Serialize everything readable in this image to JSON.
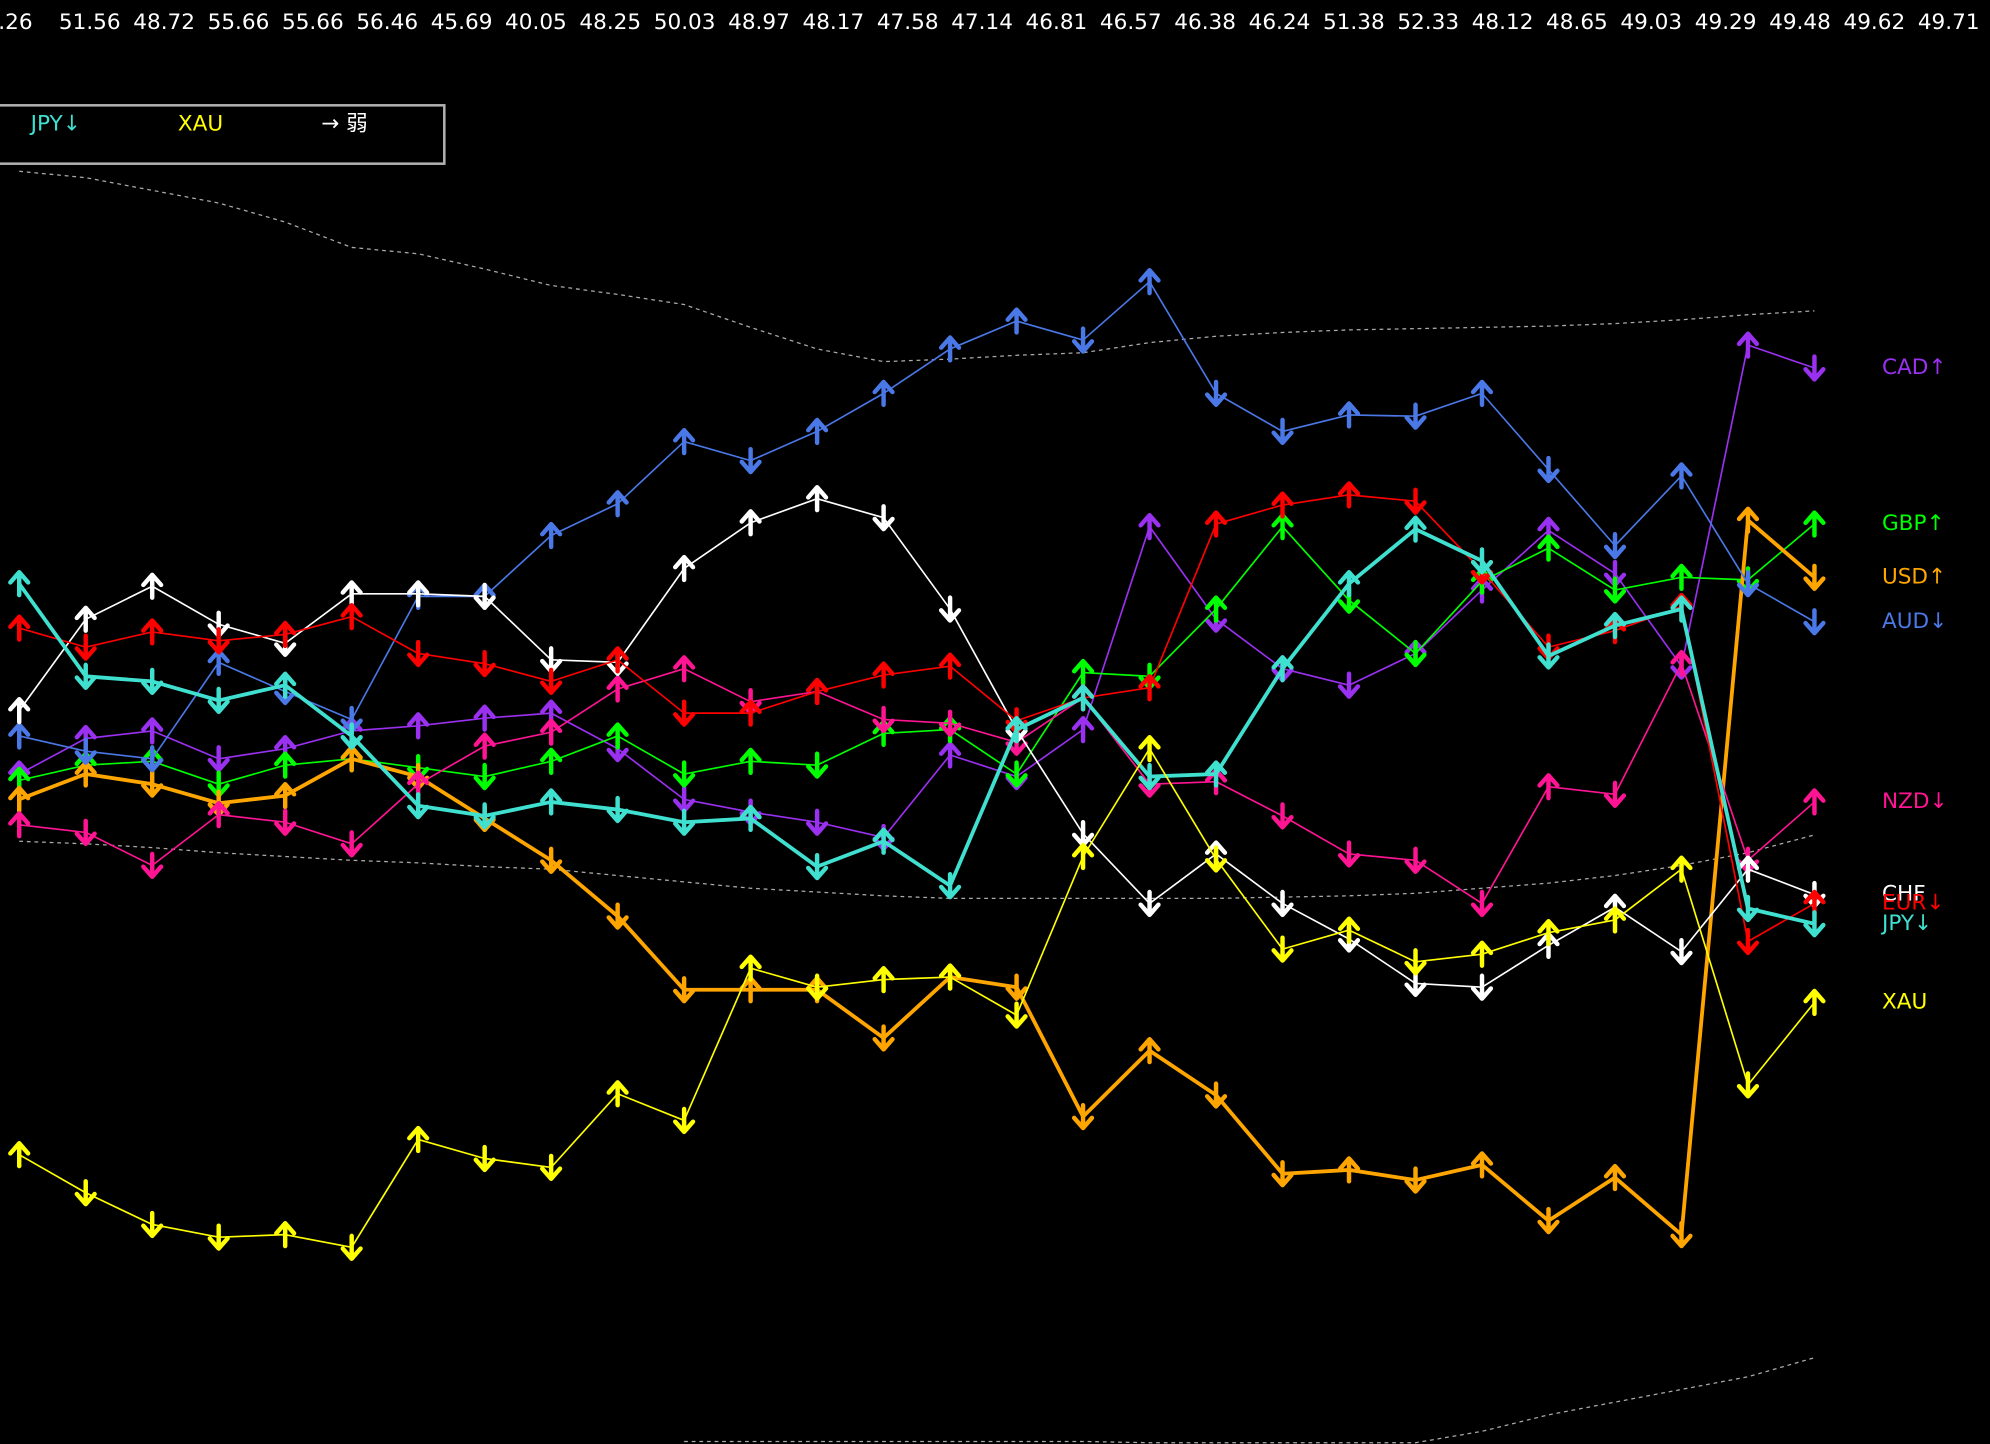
{
  "chart_data": {
    "type": "line",
    "top_values": [
      ".26",
      "51.56",
      "48.72",
      "55.66",
      "55.66",
      "56.46",
      "45.69",
      "40.05",
      "48.25",
      "50.03",
      "48.97",
      "48.17",
      "47.58",
      "47.14",
      "46.81",
      "46.57",
      "46.38",
      "46.24",
      "51.38",
      "52.33",
      "48.12",
      "48.65",
      "49.03",
      "49.29",
      "49.48",
      "49.62",
      "49.71"
    ],
    "legend_box": [
      {
        "text": "JPY↓",
        "color": "#40e0d0"
      },
      {
        "text": "XAU",
        "color": "#ffff00"
      },
      {
        "text": "→ 弱",
        "color": "#ffffff"
      }
    ],
    "ylim": [
      0,
      100
    ],
    "series": [
      {
        "name": "CAD↑",
        "color": "#9a30f0",
        "width": 1.3,
        "values": [
          52.8,
          55.6,
          56.2,
          54.0,
          54.8,
          56.2,
          56.6,
          57.2,
          57.6,
          54.8,
          50.8,
          49.8,
          49.0,
          47.8,
          54.3,
          52.6,
          56.3,
          72.3,
          65.0,
          61.1,
          59.8,
          62.3,
          67.3,
          72.0,
          68.6,
          61.3,
          86.6,
          84.8
        ]
      },
      {
        "name": "GBP↑",
        "color": "#00ff00",
        "width": 1.3,
        "values": [
          52.3,
          53.5,
          53.8,
          52.0,
          53.5,
          54.0,
          53.3,
          52.6,
          53.8,
          55.8,
          52.8,
          53.8,
          53.5,
          56.0,
          56.3,
          52.8,
          60.8,
          60.5,
          65.8,
          72.3,
          66.5,
          62.3,
          68.0,
          70.6,
          67.3,
          68.3,
          68.1,
          72.5
        ]
      },
      {
        "name": "USD↑",
        "color": "#ffa500",
        "width": 3,
        "values": [
          50.8,
          52.8,
          52.0,
          50.5,
          51.1,
          54.0,
          52.6,
          49.3,
          46.0,
          41.6,
          35.8,
          35.8,
          35.8,
          32.0,
          36.8,
          36.0,
          25.8,
          31.0,
          27.5,
          21.3,
          21.6,
          20.8,
          22.0,
          17.6,
          21.0,
          16.5,
          72.8,
          68.3
        ]
      },
      {
        "name": "AUD↓",
        "color": "#4a78e6",
        "width": 1.3,
        "values": [
          55.8,
          54.6,
          54.0,
          61.6,
          59.3,
          57.1,
          66.8,
          66.8,
          71.6,
          74.1,
          79.0,
          77.5,
          79.8,
          82.8,
          86.3,
          88.5,
          87.0,
          91.6,
          82.8,
          79.8,
          81.1,
          81.0,
          82.8,
          76.8,
          70.8,
          76.3,
          67.8,
          64.8
        ]
      },
      {
        "name": "NZD↓",
        "color": "#ff1493",
        "width": 1.3,
        "values": [
          48.8,
          48.2,
          45.6,
          49.6,
          49.0,
          47.3,
          52.0,
          55.0,
          56.1,
          59.5,
          61.1,
          58.5,
          59.3,
          57.1,
          56.8,
          55.3,
          58.8,
          52.0,
          52.2,
          49.5,
          46.5,
          46.0,
          42.6,
          51.8,
          51.2,
          61.5,
          46.0,
          50.6
        ]
      },
      {
        "name": "CHF",
        "color": "#ffffff",
        "width": 1.3,
        "values": [
          57.8,
          65.0,
          67.6,
          64.6,
          63.1,
          67.0,
          67.0,
          66.8,
          61.8,
          61.6,
          69.0,
          72.6,
          74.5,
          73.0,
          65.8,
          56.3,
          48.1,
          42.6,
          46.5,
          42.6,
          39.8,
          36.3,
          36.0,
          39.3,
          42.3,
          38.8,
          45.3,
          43.3
        ]
      },
      {
        "name": "EUR↓",
        "color": "#ff0000",
        "width": 1.3,
        "values": [
          64.3,
          62.8,
          64.0,
          63.3,
          63.8,
          65.2,
          62.3,
          61.5,
          60.1,
          61.8,
          57.6,
          57.6,
          59.3,
          60.6,
          61.3,
          57.0,
          58.8,
          59.6,
          72.5,
          74.0,
          74.8,
          74.3,
          68.8,
          62.8,
          64.1,
          66.0,
          39.6,
          42.6
        ]
      },
      {
        "name": "JPY↓",
        "color": "#40e0d0",
        "width": 3,
        "values": [
          67.8,
          60.5,
          60.1,
          58.6,
          59.8,
          55.8,
          50.3,
          49.5,
          50.6,
          50.0,
          49.0,
          49.3,
          45.5,
          47.5,
          44.0,
          56.3,
          58.8,
          52.6,
          52.8,
          61.1,
          67.8,
          72.1,
          69.6,
          62.1,
          64.5,
          65.8,
          42.2,
          41.0
        ]
      },
      {
        "name": "XAU",
        "color": "#ffff00",
        "width": 1.3,
        "values": [
          22.8,
          19.8,
          17.3,
          16.3,
          16.5,
          15.5,
          24.0,
          22.5,
          21.8,
          27.6,
          25.5,
          37.5,
          36.0,
          36.6,
          36.8,
          33.8,
          46.3,
          54.8,
          46.1,
          39.0,
          40.5,
          38.0,
          38.6,
          40.3,
          41.3,
          45.3,
          28.3,
          34.8
        ]
      }
    ],
    "bands": [
      {
        "color": "#aaaaaa",
        "values": [
          100.3,
          99.8,
          98.8,
          97.8,
          96.3,
          94.3,
          93.8,
          92.6,
          91.3,
          90.6,
          89.8,
          88.0,
          86.3,
          85.3,
          85.5,
          85.8,
          86.0,
          86.8,
          87.3,
          87.6,
          87.8,
          87.9,
          88.0,
          88.1,
          88.3,
          88.6,
          89.0,
          89.3
        ]
      },
      {
        "color": "#aaaaaa",
        "values": [
          47.5,
          47.3,
          47.0,
          46.6,
          46.3,
          46.0,
          45.8,
          45.5,
          45.3,
          44.8,
          44.3,
          43.8,
          43.5,
          43.2,
          43.0,
          43.0,
          43.0,
          43.0,
          43.0,
          43.1,
          43.2,
          43.4,
          43.8,
          44.2,
          44.8,
          45.6,
          46.6,
          48.0
        ]
      },
      {
        "color": "#aaaaaa",
        "values": [
          null,
          null,
          null,
          null,
          null,
          null,
          null,
          null,
          null,
          null,
          0.2,
          0.2,
          0.2,
          0.2,
          0.2,
          0.2,
          0.2,
          0.1,
          0.1,
          0.1,
          0.1,
          0.1,
          1.0,
          2.3,
          3.3,
          4.3,
          5.3,
          6.8
        ]
      }
    ]
  }
}
